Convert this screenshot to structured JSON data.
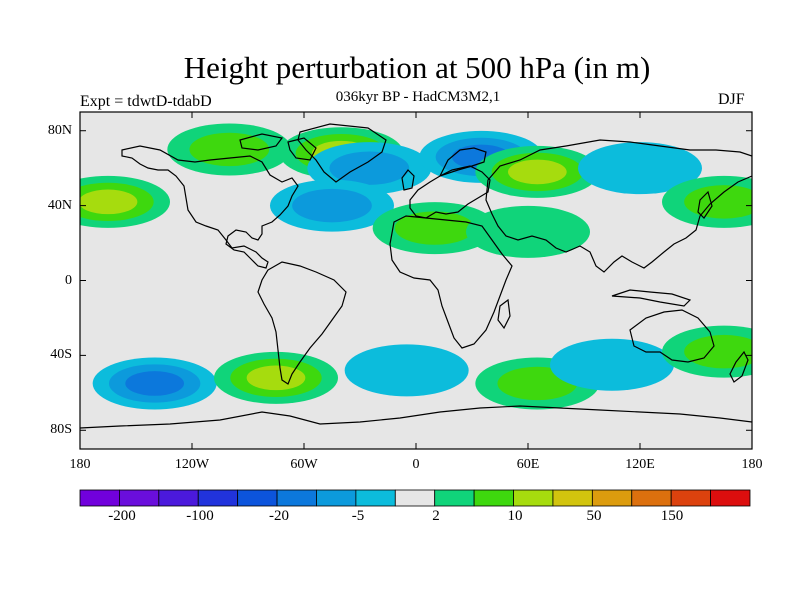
{
  "title": "Height perturbation at 500 hPa (in m)",
  "subtitle": "036kyr BP - HadCM3M2,1",
  "experiment": "Expt = tdwtD-tdabD",
  "season": "DJF",
  "map": {
    "projection": "cylindrical-equidistant",
    "lon_range": [
      -180,
      180
    ],
    "lat_range": [
      -90,
      90
    ],
    "background_color": "#e6e6e6",
    "lat_ticks": [
      "80N",
      "40N",
      "0",
      "40S",
      "80S"
    ],
    "lon_ticks": [
      "180",
      "120W",
      "60W",
      "0",
      "60E",
      "120E",
      "180"
    ],
    "anomaly_regions": [
      {
        "name": "arctic-canada-positive",
        "lon": -100,
        "lat": 70,
        "level": 2
      },
      {
        "name": "greenland-positive",
        "lon": -40,
        "lat": 68,
        "level": 3
      },
      {
        "name": "north-atlantic-negative",
        "lon": -25,
        "lat": 60,
        "level": -2
      },
      {
        "name": "barents-negative",
        "lon": 35,
        "lat": 66,
        "level": -3
      },
      {
        "name": "siberia-positive",
        "lon": 65,
        "lat": 58,
        "level": 3
      },
      {
        "name": "east-asia-negative",
        "lon": 120,
        "lat": 60,
        "level": -1
      },
      {
        "name": "north-pacific-positive",
        "lon": -165,
        "lat": 42,
        "level": 3
      },
      {
        "name": "west-pacific-positive",
        "lon": 165,
        "lat": 42,
        "level": 2
      },
      {
        "name": "us-atlantic-negative",
        "lon": -45,
        "lat": 40,
        "level": -2
      },
      {
        "name": "north-africa-positive",
        "lon": 10,
        "lat": 28,
        "level": 2
      },
      {
        "name": "middle-east-positive",
        "lon": 60,
        "lat": 26,
        "level": 1
      },
      {
        "name": "south-pacific-negative",
        "lon": -140,
        "lat": -55,
        "level": -3
      },
      {
        "name": "south-america-positive",
        "lon": -75,
        "lat": -52,
        "level": 3
      },
      {
        "name": "south-atlantic-negative",
        "lon": -5,
        "lat": -48,
        "level": -1
      },
      {
        "name": "indian-ocean-positive",
        "lon": 65,
        "lat": -55,
        "level": 2
      },
      {
        "name": "australia-negative",
        "lon": 105,
        "lat": -45,
        "level": -1
      },
      {
        "name": "tasman-positive",
        "lon": 165,
        "lat": -38,
        "level": 2
      }
    ]
  },
  "colorbar": {
    "colors": [
      "#7100dc",
      "#6a0edc",
      "#4b19dc",
      "#2133dc",
      "#0c54dc",
      "#0c78dc",
      "#0c9adc",
      "#0cbcdc",
      "#e6e6e6",
      "#10d47a",
      "#3ed80e",
      "#a6dc0e",
      "#d2c40e",
      "#dc9c0e",
      "#dc700e",
      "#dc420e",
      "#dc0e0e"
    ],
    "labels": [
      "-200",
      "-100",
      "-20",
      "-5",
      "2",
      "10",
      "50",
      "150"
    ]
  }
}
